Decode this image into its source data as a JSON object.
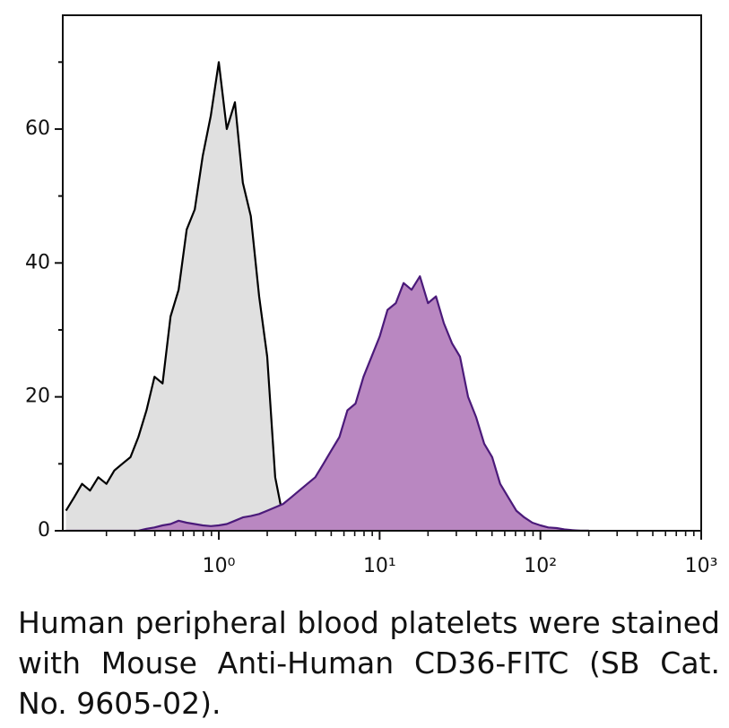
{
  "chart_data": {
    "type": "area",
    "caption": "Human peripheral blood platelets were stained with Mouse Anti-Human CD36-FITC (SB Cat. No. 9605-02).",
    "xscale": "log",
    "xlim": [
      0.107,
      1000
    ],
    "ylim": [
      0,
      77
    ],
    "xticks": [
      {
        "value": 1,
        "label": "10⁰"
      },
      {
        "value": 10,
        "label": "10¹"
      },
      {
        "value": 100,
        "label": "10²"
      },
      {
        "value": 1000,
        "label": "10³"
      }
    ],
    "xminorticks": [
      0.2,
      0.3,
      0.4,
      0.5,
      0.6,
      0.7,
      0.8,
      0.9,
      2,
      3,
      4,
      5,
      6,
      7,
      8,
      9,
      20,
      30,
      40,
      50,
      60,
      70,
      80,
      90,
      200,
      300,
      400,
      500,
      600,
      700,
      800,
      900
    ],
    "yticks": [
      0,
      20,
      40,
      60
    ],
    "yminorticks": [
      10,
      30,
      50,
      70
    ],
    "x": [
      0.112,
      0.126,
      0.141,
      0.158,
      0.178,
      0.2,
      0.224,
      0.251,
      0.282,
      0.316,
      0.355,
      0.398,
      0.447,
      0.501,
      0.562,
      0.631,
      0.708,
      0.794,
      0.891,
      1,
      1.12,
      1.26,
      1.41,
      1.58,
      1.78,
      2,
      2.24,
      2.51,
      2.82,
      3.16,
      3.55,
      3.98,
      4.47,
      5.01,
      5.62,
      6.31,
      7.08,
      7.94,
      8.91,
      10,
      11.2,
      12.6,
      14.1,
      15.8,
      17.8,
      20,
      22.4,
      25.1,
      28.2,
      31.6,
      35.5,
      39.8,
      44.7,
      50.1,
      56.2,
      63.1,
      70.8,
      79.4,
      89.1,
      100,
      112,
      126,
      141,
      158,
      178,
      200
    ],
    "series": [
      {
        "color": "#000000",
        "fill": "#e0e0e0",
        "values": [
          3,
          5,
          7,
          6,
          8,
          7,
          9,
          10,
          11,
          14,
          18,
          23,
          22,
          32,
          36,
          45,
          48,
          56,
          62,
          70,
          60,
          64,
          52,
          47,
          35,
          26,
          8,
          2,
          0.5,
          0,
          0,
          0,
          0,
          0,
          0,
          0,
          0,
          0,
          0,
          0,
          0,
          0,
          0,
          0,
          0,
          0,
          0,
          0,
          0,
          0,
          0,
          0,
          0,
          0,
          0,
          0,
          0,
          0,
          0,
          0,
          0,
          0,
          0,
          0,
          0,
          0
        ]
      },
      {
        "color": "#4b1a7a",
        "fill": "#b987c1",
        "values": [
          0,
          0,
          0,
          0,
          0,
          0,
          0,
          0,
          0,
          0,
          0.3,
          0.5,
          0.8,
          1,
          1.5,
          1.2,
          1,
          0.8,
          0.7,
          0.8,
          1,
          1.5,
          2,
          2.2,
          2.5,
          3,
          3.5,
          4,
          5,
          6,
          7,
          8,
          10,
          12,
          14,
          18,
          19,
          23,
          26,
          29,
          33,
          34,
          37,
          36,
          38,
          34,
          35,
          31,
          28,
          26,
          20,
          17,
          13,
          11,
          7,
          5,
          3,
          2,
          1.2,
          0.8,
          0.5,
          0.4,
          0.2,
          0.1,
          0,
          0
        ]
      }
    ]
  }
}
